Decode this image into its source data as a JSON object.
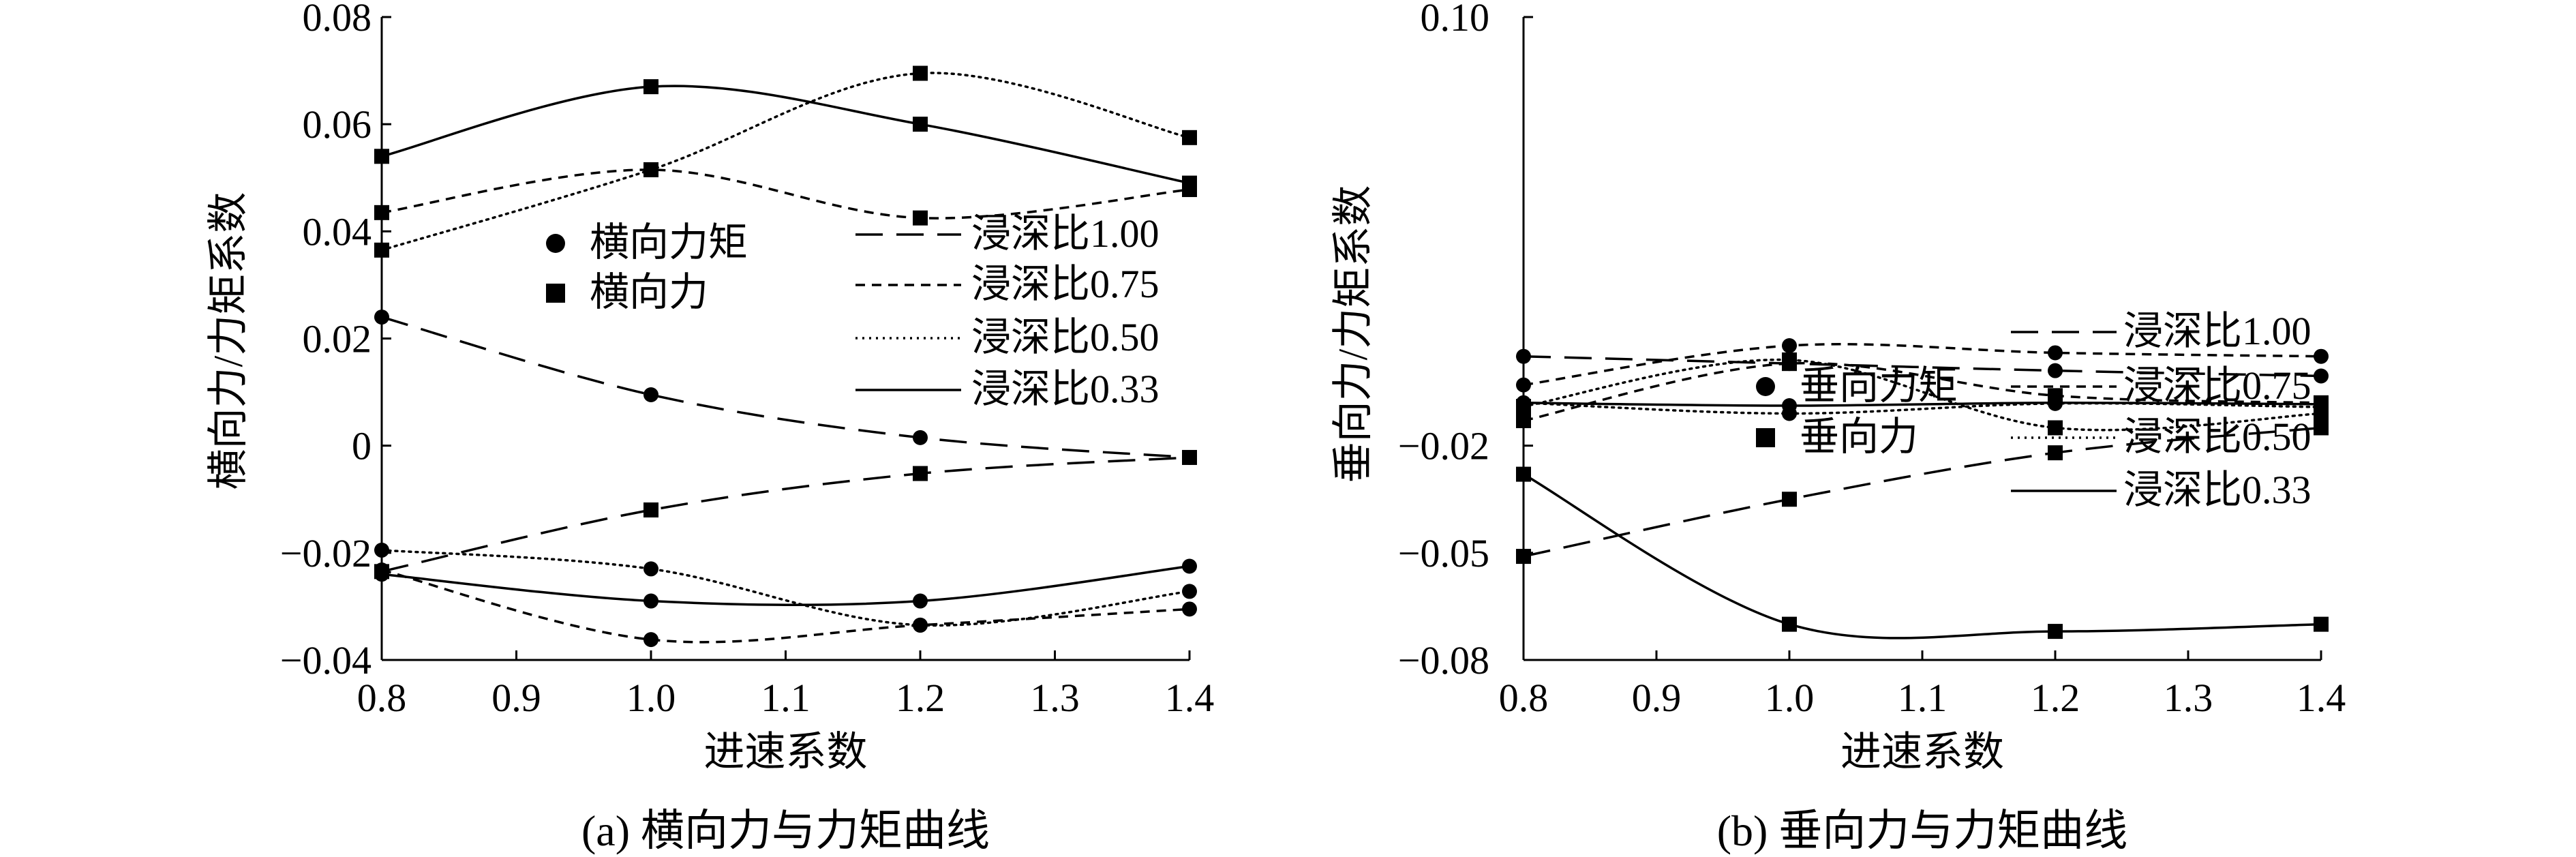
{
  "chart_data": [
    {
      "type": "line",
      "title": "(a) 横向力与力矩曲线",
      "xlabel": "进速系数",
      "ylabel": "横向力/力矩系数",
      "xlim": [
        0.8,
        1.4
      ],
      "ylim": [
        -0.04,
        0.08
      ],
      "xticks": [
        "0.8",
        "0.9",
        "1.0",
        "1.1",
        "1.2",
        "1.3",
        "1.4"
      ],
      "yticks": [
        "-0.04",
        "-0.02",
        "0",
        "0.02",
        "0.04",
        "0.06",
        "0.08"
      ],
      "x": [
        0.8,
        1.0,
        1.2,
        1.4
      ],
      "legend_markers": [
        {
          "marker": "circle",
          "label": "横向力矩"
        },
        {
          "marker": "square",
          "label": "横向力"
        }
      ],
      "legend_lines": [
        {
          "style": "long-dash",
          "label": "浸深比1.00"
        },
        {
          "style": "short-dash",
          "label": "浸深比0.75"
        },
        {
          "style": "dotted",
          "label": "浸深比0.50"
        },
        {
          "style": "solid",
          "label": "浸深比0.33"
        }
      ],
      "series": [
        {
          "quantity": "横向力矩",
          "depth": "浸深比1.00",
          "style": "long-dash",
          "marker": "circle",
          "values": [
            0.024,
            0.0095,
            0.0015,
            -0.0022
          ]
        },
        {
          "quantity": "横向力",
          "depth": "浸深比1.00",
          "style": "long-dash",
          "marker": "square",
          "values": [
            -0.0235,
            -0.012,
            -0.0052,
            -0.0022
          ]
        },
        {
          "quantity": "横向力矩",
          "depth": "浸深比0.75",
          "style": "short-dash",
          "marker": "circle",
          "values": [
            -0.0232,
            -0.0362,
            -0.0335,
            -0.0305
          ]
        },
        {
          "quantity": "横向力",
          "depth": "浸深比0.75",
          "style": "short-dash",
          "marker": "square",
          "values": [
            0.0435,
            0.0515,
            0.0425,
            0.0478
          ]
        },
        {
          "quantity": "横向力矩",
          "depth": "浸深比0.50",
          "style": "dotted",
          "marker": "circle",
          "values": [
            -0.0195,
            -0.023,
            -0.0335,
            -0.0272
          ]
        },
        {
          "quantity": "横向力",
          "depth": "浸深比0.50",
          "style": "dotted",
          "marker": "square",
          "values": [
            0.0365,
            0.0515,
            0.0695,
            0.0575
          ]
        },
        {
          "quantity": "横向力矩",
          "depth": "浸深比0.33",
          "style": "solid",
          "marker": "circle",
          "values": [
            -0.024,
            -0.029,
            -0.029,
            -0.0225
          ]
        },
        {
          "quantity": "横向力",
          "depth": "浸深比0.33",
          "style": "solid",
          "marker": "square",
          "values": [
            0.054,
            0.067,
            0.06,
            0.049
          ]
        }
      ]
    },
    {
      "type": "line",
      "title": "(b) 垂向力与力矩曲线",
      "xlabel": "进速系数",
      "ylabel": "垂向力/力矩系数",
      "xlim": [
        0.8,
        1.4
      ],
      "ylim": [
        -0.08,
        0.1
      ],
      "xticks": [
        "0.8",
        "0.9",
        "1.0",
        "1.1",
        "1.2",
        "1.3",
        "1.4"
      ],
      "yticks": [
        "-0.08",
        "-0.05",
        "-0.02",
        "0.10"
      ],
      "x": [
        0.8,
        1.0,
        1.2,
        1.4
      ],
      "legend_markers": [
        {
          "marker": "circle",
          "label": "垂向力矩"
        },
        {
          "marker": "square",
          "label": "垂向力"
        }
      ],
      "legend_lines": [
        {
          "style": "long-dash",
          "label": "浸深比1.00"
        },
        {
          "style": "short-dash",
          "label": "浸深比0.75"
        },
        {
          "style": "dotted",
          "label": "浸深比0.50"
        },
        {
          "style": "solid",
          "label": "浸深比0.33"
        }
      ],
      "series": [
        {
          "quantity": "垂向力矩",
          "depth": "浸深比1.00",
          "style": "long-dash",
          "marker": "circle",
          "values": [
            0.005,
            0.003,
            0.001,
            -0.0005
          ]
        },
        {
          "quantity": "垂向力",
          "depth": "浸深比1.00",
          "style": "long-dash",
          "marker": "square",
          "values": [
            -0.051,
            -0.035,
            -0.022,
            -0.015
          ]
        },
        {
          "quantity": "垂向力矩",
          "depth": "浸深比0.75",
          "style": "short-dash",
          "marker": "circle",
          "values": [
            -0.003,
            0.008,
            0.006,
            0.005
          ]
        },
        {
          "quantity": "垂向力",
          "depth": "浸深比0.75",
          "style": "short-dash",
          "marker": "square",
          "values": [
            -0.013,
            0.003,
            -0.006,
            -0.008
          ]
        },
        {
          "quantity": "垂向力矩",
          "depth": "浸深比0.50",
          "style": "dotted",
          "marker": "circle",
          "values": [
            -0.008,
            -0.011,
            -0.0082,
            -0.0092
          ]
        },
        {
          "quantity": "垂向力",
          "depth": "浸深比0.50",
          "style": "dotted",
          "marker": "square",
          "values": [
            -0.009,
            0.004,
            -0.015,
            -0.011
          ]
        },
        {
          "quantity": "垂向力矩",
          "depth": "浸深比0.33",
          "style": "solid",
          "marker": "circle",
          "values": [
            -0.008,
            -0.0088,
            -0.008,
            -0.0084
          ]
        },
        {
          "quantity": "垂向力",
          "depth": "浸深比0.33",
          "style": "solid",
          "marker": "square",
          "values": [
            -0.028,
            -0.07,
            -0.072,
            -0.07
          ]
        }
      ]
    }
  ]
}
